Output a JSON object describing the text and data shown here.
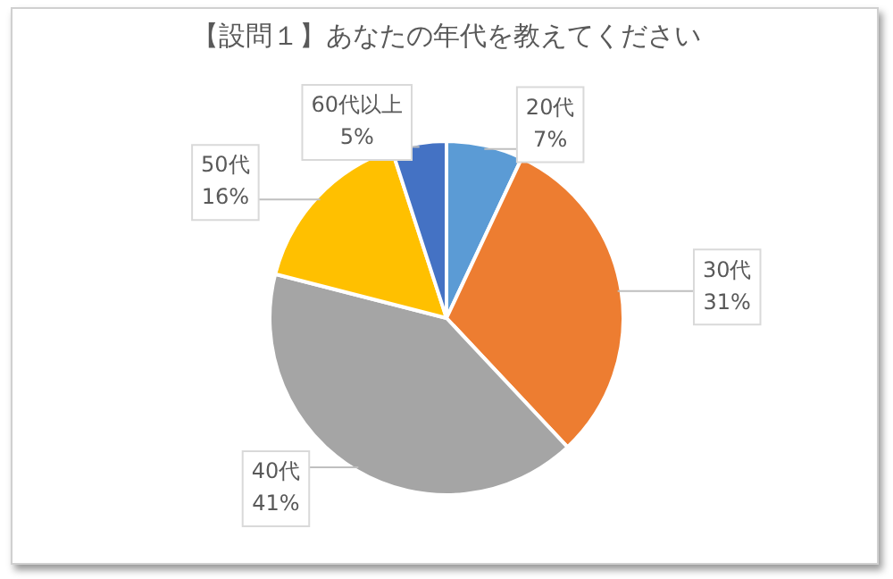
{
  "chart_data": {
    "type": "pie",
    "title": "【設問１】あなたの年代を教えてください",
    "categories": [
      "20代",
      "30代",
      "40代",
      "50代",
      "60代以上"
    ],
    "values": [
      7,
      31,
      41,
      16,
      5
    ],
    "value_labels": [
      "7%",
      "31%",
      "41%",
      "16%",
      "5%"
    ],
    "colors": [
      "#5b9bd5",
      "#ed7d31",
      "#a5a5a5",
      "#ffc000",
      "#4472c4"
    ],
    "legend": false
  }
}
